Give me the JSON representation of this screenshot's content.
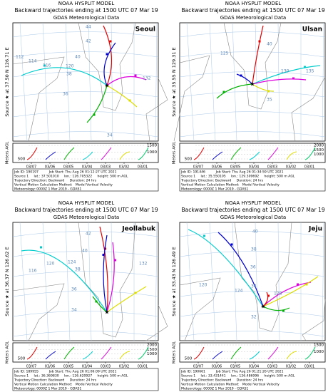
{
  "panels": [
    {
      "title_lines": [
        "NOAA HYSPLIT MODEL",
        "Backward trajectories ending at 1500 UTC 07 Mar 19",
        "GDAS Meteorological Data"
      ],
      "location": "Seoul",
      "source": "Source ★ at 37.50 N 126.71 E",
      "y_axis_label": "Meters AGL",
      "yticks": [
        "500",
        "1000",
        "1500"
      ],
      "dates": [
        "03/07",
        "03/06",
        "03/05",
        "03/04",
        "03/03",
        "03/02",
        "03/01"
      ],
      "map_labels": [
        "44",
        "42",
        "40",
        "38",
        "36",
        "34",
        "112",
        "114",
        "116",
        "120",
        "132"
      ],
      "info": [
        "Job ID: 190197          Job Start: Thu Aug 26 01:12:27 UTC 2021",
        "Source 1     lat.: 37.501010     lon.: 126.705322     height: 500 m AGL",
        "Trajectory Direction: Backward     Duration: 24 hrs",
        "Vertical Motion Calculation Method:   Model Vertical Velocity",
        "Meteorology: 0000Z 1 Mar 2019 - GDAS1"
      ]
    },
    {
      "title_lines": [
        "NOAA HYSPLIT MODEL",
        "Backward trajectories ending at 1500 UTC 07 Mar 19",
        "GDAS Meteorological Data"
      ],
      "location": "Ulsan",
      "source": "Source ★ at 35.55 N 129.31 E",
      "y_axis_label": "Meters AGL",
      "yticks": [
        "500",
        "1000",
        "1500",
        "2000"
      ],
      "dates": [
        "03/07",
        "03/06",
        "03/05",
        "03/04",
        "03/03",
        "03/02",
        "03/01"
      ],
      "map_labels": [
        "40",
        "35",
        "125",
        "130",
        "135"
      ],
      "info": [
        "Job ID: 191446          Job Start: Thu Aug 26 01:34:59 UTC 2021",
        "Source 1     lat.: 35.550105     lon.: 129.309692     height: 500 m AGL",
        "Trajectory Direction: Backward     Duration: 24 hrs",
        "Vertical Motion Calculation Method:   Model Vertical Velocity",
        "Meteorology: 0000Z 1 Mar 2019 - GDAS1"
      ]
    },
    {
      "title_lines": [
        "NOAA HYSPLIT MODEL",
        "Backward trajectories ending at 1500 UTC 07 Mar 19",
        "GDAS Meteorological Data"
      ],
      "location": "Jeollabuk",
      "source": "Source ★ at 36.37 N 126.62 E",
      "y_axis_label": "Meters AGL",
      "yticks": [
        "500",
        "1000",
        "1500",
        "2000"
      ],
      "dates": [
        "03/07",
        "03/06",
        "03/05",
        "03/04",
        "03/03",
        "03/02",
        "03/01"
      ],
      "map_labels": [
        "42",
        "40",
        "38",
        "36",
        "34",
        "116",
        "120",
        "124",
        "132"
      ],
      "info": [
        "Job ID: 189955          Job Start: Thu Aug 26 01:06:09 UTC 2021",
        "Source 1     lat.: 36.369830     lon.: 126.620927     height: 500 m AGL",
        "Trajectory Direction: Backward     Duration: 24 hrs",
        "Vertical Motion Calculation Method:   Model Vertical Velocity",
        "Meteorology: 0000Z 1 Mar 2019 - GDAS1"
      ]
    },
    {
      "title_lines": [
        "NOAA HYSPLIT MODEL",
        "Backward trajectories ending at 1500 UTC 07 Mar 19",
        "GDAS Meteorological Data"
      ],
      "location": "Jeju",
      "source": "Source ★ at 33.43 N 126.49 E",
      "y_axis_label": "Meters AGL",
      "yticks": [
        "500",
        "1000",
        "1500"
      ],
      "dates": [
        "03/07",
        "03/06",
        "03/05",
        "03/04",
        "03/03",
        "03/02",
        "03/01"
      ],
      "map_labels": [
        "40",
        "38",
        "36",
        "34",
        "32",
        "120",
        "124",
        "128"
      ],
      "info": [
        "Job ID: 190661          Job Start: Thu Aug 26 01:21:26 UTC 2021",
        "Source 1     lat.: 33.431441     lon.: 126.486996     height: 500 m AGL",
        "Trajectory Direction: Backward     Duration: 24 hrs",
        "Vertical Motion Calculation Method:   Model Vertical Velocity",
        "Meteorology: 0000Z 1 Mar 2019 - GDAS1"
      ]
    }
  ]
}
